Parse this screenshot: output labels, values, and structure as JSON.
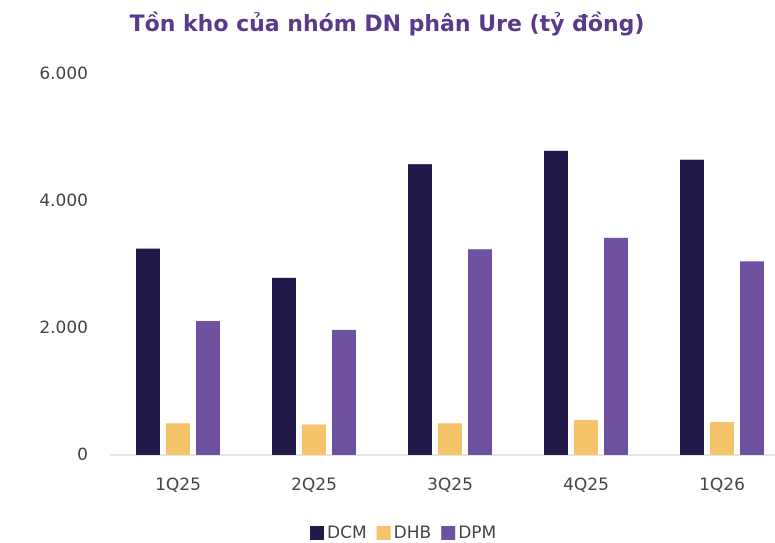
{
  "chart_data": {
    "type": "bar",
    "title": "Tồn kho của nhóm DN phân Ure (tỷ đồng)",
    "categories": [
      "1Q25",
      "2Q25",
      "3Q25",
      "4Q25",
      "1Q26"
    ],
    "series": [
      {
        "name": "DCM",
        "color": "#22194a",
        "values": [
          3250,
          2790,
          4580,
          4790,
          4650
        ]
      },
      {
        "name": "DHB",
        "color": "#f4c36a",
        "values": [
          500,
          480,
          500,
          550,
          520
        ]
      },
      {
        "name": "DPM",
        "color": "#6e52a0",
        "values": [
          2110,
          1970,
          3240,
          3420,
          3050
        ]
      }
    ],
    "ylim": [
      0,
      6000
    ],
    "yticks": [
      0,
      {
        "value": 2000,
        "label": "2.000"
      },
      {
        "value": 4000,
        "label": "4.000"
      },
      {
        "value": 6000,
        "label": "6.000"
      }
    ],
    "grid": false,
    "legend": "bottom"
  }
}
